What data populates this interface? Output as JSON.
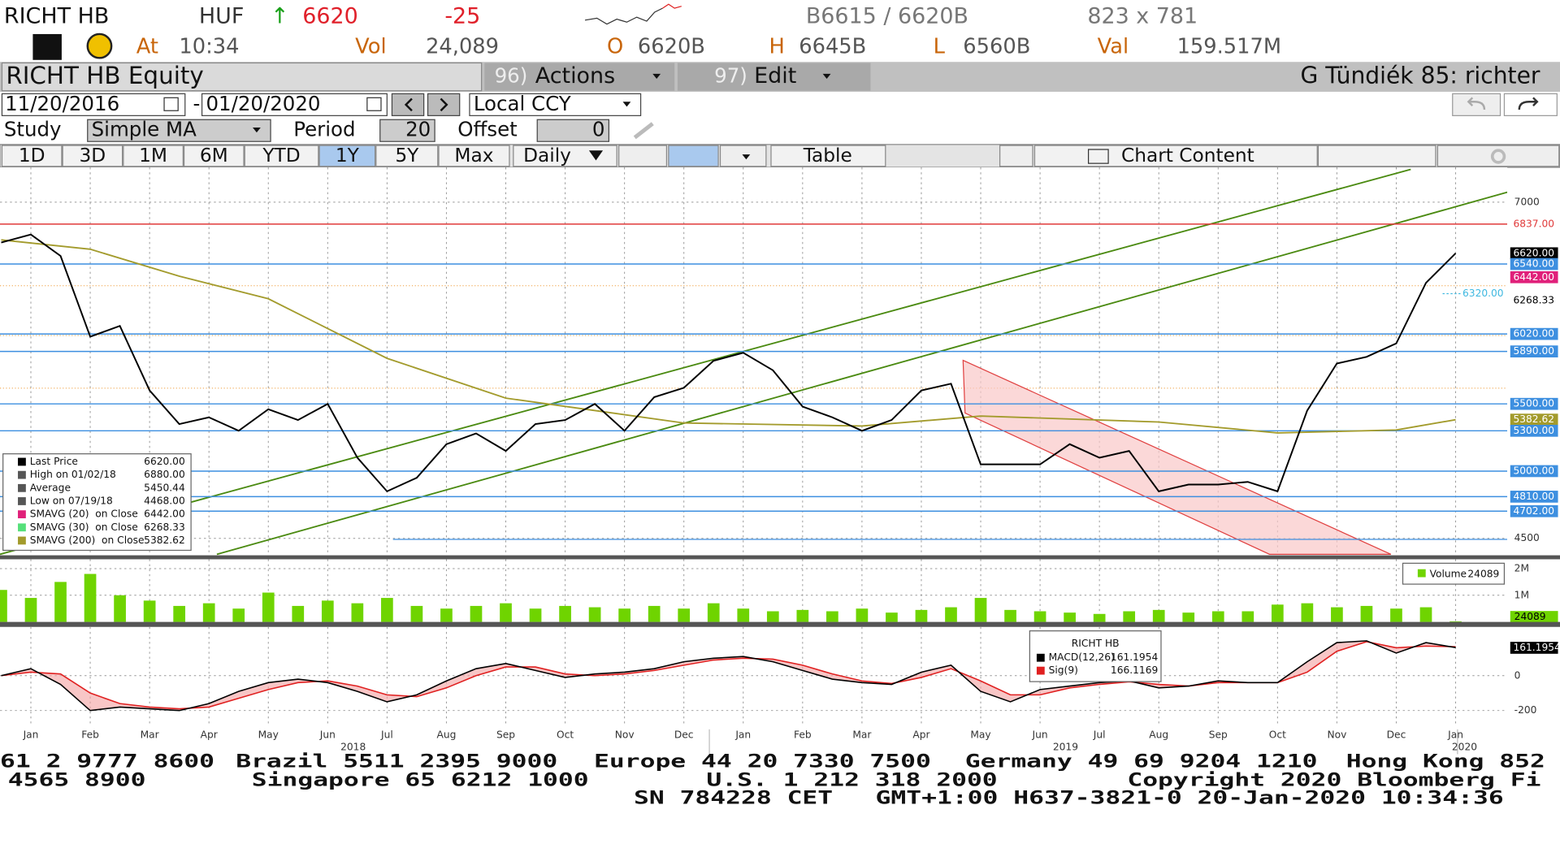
{
  "header": {
    "ticker": "RICHT HB",
    "currency": "HUF",
    "arrow": "↑",
    "last": "6620",
    "change": "-25",
    "bid_ask": "B6615 / 6620B",
    "size": "823 x 781",
    "at_label": "At",
    "time": "10:34",
    "vol_label": "Vol",
    "vol": "24,089",
    "open_label": "O",
    "open": "6620B",
    "high_label": "H",
    "high": "6645B",
    "low_label": "L",
    "low": "6560B",
    "val_label": "Val",
    "val": "159.517M"
  },
  "toolbar": {
    "security": "RICHT HB Equity",
    "actions_num": "96)",
    "actions": "Actions",
    "edit_num": "97)",
    "edit": "Edit",
    "user": "G Tündiék 85: richter",
    "start_date": "11/20/2016",
    "dash": "-",
    "end_date": "01/20/2020",
    "currency_mode": "Local CCY",
    "study_label": "Study",
    "study": "Simple MA",
    "period_label": "Period",
    "period": "20",
    "offset_label": "Offset",
    "offset": "0",
    "tabs": [
      "1D",
      "3D",
      "1M",
      "6M",
      "YTD",
      "1Y",
      "5Y",
      "Max"
    ],
    "selected_tab": 5,
    "frequency": "Daily",
    "table": "Table",
    "chart_content": "Chart Content"
  },
  "chart_data": [
    {
      "type": "line",
      "xlim": [
        -0.52,
        24.87
      ],
      "ylim": [
        4374,
        7259
      ],
      "yticks": [
        4500,
        7000
      ],
      "grid": true,
      "series": [
        {
          "color": "#000000",
          "x": [
            -0.5,
            0,
            0.5,
            1,
            1.5,
            2,
            2.5,
            3,
            3.5,
            4,
            4.5,
            5,
            5.5,
            6,
            6.5,
            7,
            7.5,
            8,
            8.5,
            9,
            9.5,
            10,
            10.5,
            11,
            11.5,
            12,
            12.5,
            13,
            13.5,
            14,
            14.5,
            15,
            15.5,
            16,
            16.5,
            17,
            17.5,
            18,
            18.5,
            19,
            19.5,
            20,
            20.5,
            21,
            21.5,
            22,
            22.5,
            23,
            23.5,
            24
          ],
          "values": [
            6700,
            6760,
            6600,
            6000,
            6080,
            5600,
            5350,
            5400,
            5300,
            5460,
            5380,
            5500,
            5100,
            4850,
            4950,
            5200,
            5280,
            5150,
            5350,
            5380,
            5500,
            5300,
            5550,
            5620,
            5820,
            5880,
            5750,
            5480,
            5400,
            5300,
            5380,
            5600,
            5650,
            5050,
            5050,
            5050,
            5200,
            5100,
            5150,
            4850,
            4900,
            4900,
            4920,
            4850,
            5450,
            5800,
            5850,
            5950,
            6400,
            6620
          ]
        },
        {
          "color": "#a39b2c",
          "x": [
            -0.5,
            1,
            2.5,
            4,
            6,
            8,
            11,
            14,
            16,
            19,
            21,
            23,
            24
          ],
          "values": [
            6720,
            6650,
            6450,
            6282,
            5839,
            5543,
            5358,
            5336,
            5410,
            5365,
            5284,
            5306,
            5382.62
          ]
        }
      ],
      "levels": [
        {
          "value": 6837,
          "label": "6837.00",
          "line": "#e03a3a",
          "bg": "#ffffff",
          "fg": "#e03a3a"
        },
        {
          "value": 6620,
          "label": "6620.00",
          "line": null,
          "bg": "#000000",
          "fg": "#ffffff"
        },
        {
          "value": 6540,
          "label": "6540.00",
          "line": "#3d8fe0",
          "bg": "#3d8fe0",
          "fg": "#ffffff"
        },
        {
          "value": 6442,
          "label": "6442.00",
          "line": null,
          "bg": "#e0207a",
          "fg": "#ffffff"
        },
        {
          "value": 6268.33,
          "label": "6268.33",
          "line": null,
          "bg": "#ffffff",
          "fg": "#000000"
        },
        {
          "value": 6020,
          "label": "6020.00",
          "line": "#3d8fe0",
          "bg": "#3d8fe0",
          "fg": "#ffffff"
        },
        {
          "value": 5890,
          "label": "5890.00",
          "line": "#3d8fe0",
          "bg": "#3d8fe0",
          "fg": "#ffffff"
        },
        {
          "value": 5500,
          "label": "5500.00",
          "line": "#3d8fe0",
          "bg": "#3d8fe0",
          "fg": "#ffffff"
        },
        {
          "value": 5382.62,
          "label": "5382.62",
          "line": null,
          "bg": "#a39b2c",
          "fg": "#ffffff"
        },
        {
          "value": 5300,
          "label": "5300.00",
          "line": "#3d8fe0",
          "bg": "#3d8fe0",
          "fg": "#ffffff"
        },
        {
          "value": 5000,
          "label": "5000.00",
          "line": "#3d8fe0",
          "bg": "#3d8fe0",
          "fg": "#ffffff"
        },
        {
          "value": 4810,
          "label": "4810.00",
          "line": "#3d8fe0",
          "bg": "#3d8fe0",
          "fg": "#ffffff"
        },
        {
          "value": 4702,
          "label": "4702.00",
          "line": "#3d8fe0",
          "bg": "#3d8fe0",
          "fg": "#ffffff"
        }
      ],
      "annotation": {
        "value": 6320,
        "label": "6320.00"
      },
      "legend": [
        {
          "label": "Last Price",
          "value": "6620.00",
          "color": "#000000"
        },
        {
          "label": "High on 01/02/18",
          "value": "6880.00",
          "color": "#555555"
        },
        {
          "label": "Average",
          "value": "5450.44",
          "color": "#555555"
        },
        {
          "label": "Low on 07/19/18",
          "value": "4468.00",
          "color": "#555555"
        },
        {
          "label": "SMAVG (20)  on Close",
          "value": "6442.00",
          "color": "#e0207a"
        },
        {
          "label": "SMAVG (30)  on Close",
          "value": "6268.33",
          "color": "#55e07a"
        },
        {
          "label": "SMAVG (200)  on Close",
          "value": "5382.62",
          "color": "#a39b2c"
        }
      ]
    },
    {
      "type": "bar",
      "xlim": [
        -0.52,
        24.87
      ],
      "ylim": [
        0,
        2350000
      ],
      "yticks": [
        {
          "value": 1000000,
          "label": "1M"
        },
        {
          "value": 2000000,
          "label": "2M"
        }
      ],
      "series": [
        {
          "name": "Volume",
          "color": "#6fd400",
          "x": [
            -0.5,
            0,
            0.5,
            1,
            1.5,
            2,
            2.5,
            3,
            3.5,
            4,
            4.5,
            5,
            5.5,
            6,
            6.5,
            7,
            7.5,
            8,
            8.5,
            9,
            9.5,
            10,
            10.5,
            11,
            11.5,
            12,
            12.5,
            13,
            13.5,
            14,
            14.5,
            15,
            15.5,
            16,
            16.5,
            17,
            17.5,
            18,
            18.5,
            19,
            19.5,
            20,
            20.5,
            21,
            21.5,
            22,
            22.5,
            23,
            23.5,
            24
          ],
          "values": [
            1200000,
            900000,
            1500000,
            1800000,
            1000000,
            800000,
            600000,
            700000,
            500000,
            1100000,
            600000,
            800000,
            700000,
            900000,
            600000,
            500000,
            600000,
            700000,
            500000,
            600000,
            550000,
            500000,
            600000,
            500000,
            700000,
            500000,
            400000,
            450000,
            400000,
            500000,
            350000,
            450000,
            550000,
            900000,
            450000,
            400000,
            350000,
            300000,
            400000,
            450000,
            350000,
            400000,
            400000,
            650000,
            700000,
            550000,
            600000,
            500000,
            550000,
            24089
          ]
        }
      ]
    },
    {
      "type": "line",
      "xlim": [
        -0.52,
        24.87
      ],
      "ylim": [
        -291,
        280
      ],
      "yticks": [
        -200,
        0
      ],
      "legend_title": "RICHT HB",
      "xticks": [
        {
          "value": 0,
          "label": "Jan"
        },
        {
          "value": 1,
          "label": "Feb"
        },
        {
          "value": 2,
          "label": "Mar"
        },
        {
          "value": 3,
          "label": "Apr"
        },
        {
          "value": 4,
          "label": "May"
        },
        {
          "value": 5,
          "label": "Jun"
        },
        {
          "value": 6,
          "label": "Jul"
        },
        {
          "value": 7,
          "label": "Aug"
        },
        {
          "value": 8,
          "label": "Sep"
        },
        {
          "value": 9,
          "label": "Oct"
        },
        {
          "value": 10,
          "label": "Nov"
        },
        {
          "value": 11,
          "label": "Dec"
        },
        {
          "value": 12,
          "label": "Jan"
        },
        {
          "value": 13,
          "label": "Feb"
        },
        {
          "value": 14,
          "label": "Mar"
        },
        {
          "value": 15,
          "label": "Apr"
        },
        {
          "value": 16,
          "label": "May"
        },
        {
          "value": 17,
          "label": "Jun"
        },
        {
          "value": 18,
          "label": "Jul"
        },
        {
          "value": 19,
          "label": "Aug"
        },
        {
          "value": 20,
          "label": "Sep"
        },
        {
          "value": 21,
          "label": "Oct"
        },
        {
          "value": 22,
          "label": "Nov"
        },
        {
          "value": 23,
          "label": "Dec"
        },
        {
          "value": 24,
          "label": "Jan"
        }
      ],
      "years": [
        "2018",
        "2019",
        "2020"
      ],
      "series": [
        {
          "name": "MACD(12,26)",
          "color": "#000000",
          "x": [
            -0.5,
            0,
            0.5,
            1,
            1.5,
            2,
            2.5,
            3,
            3.5,
            4,
            4.5,
            5,
            5.5,
            6,
            6.5,
            7,
            7.5,
            8,
            8.5,
            9,
            9.5,
            10,
            10.5,
            11,
            11.5,
            12,
            12.5,
            13,
            13.5,
            14,
            14.5,
            15,
            15.5,
            16,
            16.5,
            17,
            17.5,
            18,
            18.5,
            19,
            19.5,
            20,
            20.5,
            21,
            21.5,
            22,
            22.5,
            23,
            23.5,
            24
          ],
          "values": [
            0,
            40,
            -50,
            -200,
            -180,
            -190,
            -200,
            -160,
            -90,
            -40,
            -20,
            -40,
            -90,
            -150,
            -110,
            -30,
            40,
            70,
            30,
            -10,
            10,
            20,
            40,
            80,
            100,
            110,
            80,
            30,
            -20,
            -40,
            -50,
            20,
            60,
            -90,
            -150,
            -80,
            -60,
            -40,
            -30,
            -70,
            -60,
            -30,
            -40,
            -40,
            80,
            190,
            200,
            130,
            190,
            161.1954
          ]
        },
        {
          "name": "Sig(9)",
          "color": "#e02020",
          "x": [
            -0.5,
            0,
            0.5,
            1,
            1.5,
            2,
            2.5,
            3,
            3.5,
            4,
            4.5,
            5,
            5.5,
            6,
            6.5,
            7,
            7.5,
            8,
            8.5,
            9,
            9.5,
            10,
            10.5,
            11,
            11.5,
            12,
            12.5,
            13,
            13.5,
            14,
            14.5,
            15,
            15.5,
            16,
            16.5,
            17,
            17.5,
            18,
            18.5,
            19,
            19.5,
            20,
            20.5,
            21,
            21.5,
            22,
            22.5,
            23,
            23.5,
            24
          ],
          "values": [
            0,
            20,
            10,
            -100,
            -160,
            -180,
            -190,
            -180,
            -130,
            -80,
            -40,
            -30,
            -60,
            -110,
            -120,
            -70,
            0,
            50,
            50,
            10,
            0,
            10,
            30,
            60,
            90,
            100,
            95,
            60,
            10,
            -30,
            -45,
            -10,
            40,
            -30,
            -110,
            -110,
            -70,
            -50,
            -35,
            -50,
            -60,
            -40,
            -40,
            -40,
            20,
            140,
            195,
            160,
            170,
            166.1169
          ]
        }
      ]
    }
  ],
  "footer": [
    [
      "61 2 9777 8600",
      "Brazil 5511 2395 9000",
      "Europe 44 20 7330 7500",
      "Germany 49 69 9204 1210",
      "Hong Kong 852"
    ],
    [
      "4565 8900",
      "Singapore 65 6212 1000",
      "U.S. 1 212 318 2000",
      "Copyright 2020 Bloomberg Fi"
    ],
    [
      "SN 784228 CET",
      "GMT+1:00 H637-3821-0 20-Jan-2020 10:34:36"
    ]
  ]
}
